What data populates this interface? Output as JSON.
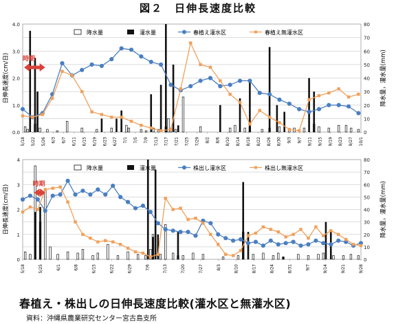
{
  "figure_title": "図２　日伸長速度比較",
  "caption": "春植え・株出しの日伸長速度比較(灌水区と無灌水区)",
  "source": "資料：沖縄県農業研究センター宮古島支所",
  "colors": {
    "irrigated": "#4a7fc1",
    "non_irrigated": "#f0a05a",
    "arrow": "#d9433a",
    "bar": "#111111",
    "grid": "#d0d0d0"
  },
  "chart_data": [
    {
      "type": "line",
      "panel": "top",
      "ylabel_left": "日伸長速度(cm/日)",
      "ylabel_right": "降水量，灌水量(mm)",
      "ylim_left": [
        0,
        4
      ],
      "ylim_right": [
        0,
        80
      ],
      "yticks_left": [
        "0.0",
        "1.0",
        "2.0",
        "3.0",
        "4.0"
      ],
      "yticks_right": [
        "0",
        "10",
        "20",
        "30",
        "40",
        "50",
        "60",
        "70",
        "80"
      ],
      "grid": true,
      "legend": [
        "降水量",
        "灌水量",
        "春植え灌水区",
        "春植え無灌水区"
      ],
      "x_ticks": [
        "5/18",
        "5/22",
        "5/26",
        "6/3",
        "6/7",
        "6/11",
        "6/15",
        "6/19",
        "6/23",
        "6/27",
        "7/1",
        "7/5",
        "7/9",
        "7/13",
        "7/17",
        "7/21",
        "7/25",
        "7/29",
        "8/2",
        "8/6",
        "8/10",
        "8/14",
        "8/18",
        "8/22",
        "8/26",
        "8/30",
        "9/3",
        "9/7",
        "9/11",
        "9/15",
        "9/19",
        "9/23",
        "9/27",
        "10/1"
      ],
      "x_day_range": [
        0,
        137
      ],
      "annotation": "時期",
      "annotation_range_days": [
        0,
        8
      ],
      "series": [
        {
          "name": "春植え灌水区",
          "x": [
            0,
            4,
            8,
            12,
            16,
            20,
            24,
            28,
            32,
            36,
            40,
            44,
            48,
            52,
            56,
            60,
            64,
            68,
            72,
            76,
            80,
            84,
            88,
            92,
            96,
            100,
            104,
            108,
            112,
            116,
            120,
            124,
            128,
            132,
            136
          ],
          "y": [
            0.85,
            0.55,
            0.7,
            1.4,
            2.55,
            2.1,
            2.3,
            2.5,
            2.45,
            2.7,
            3.1,
            3.05,
            2.8,
            2.6,
            2.5,
            1.75,
            1.55,
            1.7,
            1.9,
            2.0,
            1.7,
            1.75,
            1.9,
            1.9,
            1.45,
            1.4,
            1.2,
            1.05,
            0.85,
            0.75,
            0.85,
            1.0,
            1.0,
            0.95,
            0.7
          ]
        },
        {
          "name": "春植え無灌水区",
          "x": [
            0,
            4,
            8,
            12,
            16,
            20,
            24,
            28,
            32,
            36,
            40,
            44,
            48,
            52,
            56,
            60,
            64,
            68,
            72,
            76,
            80,
            84,
            88,
            92,
            96,
            100,
            104,
            108,
            112,
            116,
            120,
            124,
            128,
            132,
            136
          ],
          "y": [
            0.6,
            0.55,
            0.65,
            1.25,
            2.25,
            2.1,
            1.5,
            0.75,
            0.65,
            0.55,
            0.55,
            0.4,
            0.25,
            0.15,
            0.05,
            0.1,
            1.6,
            3.3,
            2.5,
            2.4,
            1.9,
            1.4,
            1.1,
            0.3,
            0.8,
            0.55,
            0.35,
            0.1,
            0.05,
            1.2,
            1.35,
            1.45,
            1.6,
            1.3,
            1.4
          ]
        }
      ],
      "bars_rain": {
        "name": "降水量",
        "x": [
          1,
          2,
          5,
          7,
          10,
          14,
          18,
          24,
          30,
          36,
          42,
          43,
          48,
          50,
          53,
          55,
          58,
          59,
          60,
          62,
          65,
          72,
          84,
          86,
          90,
          92,
          97,
          100,
          104,
          108,
          110,
          114,
          118,
          120,
          124,
          128,
          131,
          133,
          136
        ],
        "y": [
          4,
          2,
          6,
          3,
          2,
          1,
          8,
          3,
          2,
          3,
          5,
          3,
          2,
          1,
          3,
          2,
          4,
          10,
          3,
          2,
          26,
          4,
          3,
          5,
          3,
          4,
          2,
          3,
          4,
          2,
          3,
          3,
          6,
          4,
          3,
          5,
          5,
          3,
          2
        ]
      },
      "bars_irr": {
        "name": "灌水量",
        "x": [
          3,
          5,
          6,
          32,
          38,
          40,
          52,
          56,
          58,
          61,
          63,
          80,
          88,
          92,
          100,
          103,
          106,
          116,
          118
        ],
        "y": [
          75,
          55,
          30,
          10,
          10,
          16,
          28,
          35,
          80,
          50,
          5,
          20,
          25,
          38,
          63,
          20,
          15,
          40,
          30
        ]
      }
    },
    {
      "type": "line",
      "panel": "bottom",
      "ylabel_left": "日伸長速度(cm/日)",
      "ylabel_right": "降水量，灌水量(mm)",
      "ylim_left": [
        0,
        4
      ],
      "ylim_right": [
        0,
        80
      ],
      "yticks_left": [
        "0",
        "1",
        "2",
        "3",
        "4"
      ],
      "yticks_right": [
        "0",
        "10",
        "20",
        "30",
        "40",
        "50",
        "60",
        "70",
        "80"
      ],
      "grid": true,
      "legend": [
        "降水量",
        "灌水量",
        "株出し灌水区",
        "株出し無灌水区"
      ],
      "x_ticks": [
        "5/18",
        "5/25",
        "6/1",
        "6/8",
        "6/15",
        "6/22",
        "6/29",
        "7/6",
        "7/13",
        "7/20",
        "7/27",
        "8/3",
        "8/10",
        "8/17",
        "8/24",
        "8/31",
        "9/7",
        "9/14",
        "9/21",
        "9/28"
      ],
      "x_day_range": [
        0,
        135
      ],
      "annotation": "時期",
      "annotation_range_days": [
        4,
        8
      ],
      "series": [
        {
          "name": "株出し灌水区",
          "x": [
            0,
            3,
            6,
            9,
            12,
            15,
            18,
            21,
            24,
            27,
            30,
            33,
            36,
            39,
            42,
            45,
            48,
            51,
            54,
            57,
            60,
            63,
            66,
            69,
            72,
            75,
            78,
            81,
            84,
            87,
            90,
            93,
            96,
            99,
            102,
            105,
            108,
            111,
            114,
            117,
            120,
            123,
            126,
            129,
            132,
            135
          ],
          "y": [
            2.4,
            2.55,
            2.4,
            1.95,
            2.55,
            2.6,
            3.15,
            2.6,
            2.75,
            2.6,
            2.8,
            2.6,
            2.95,
            2.5,
            2.3,
            2.05,
            2.15,
            1.9,
            1.45,
            1.2,
            1.15,
            1.1,
            1.1,
            0.95,
            1.55,
            1.45,
            1.0,
            0.85,
            0.75,
            0.8,
            0.65,
            0.7,
            0.55,
            0.75,
            0.6,
            0.65,
            0.7,
            0.55,
            0.6,
            0.75,
            0.65,
            0.6,
            0.75,
            0.7,
            0.55,
            0.65
          ]
        },
        {
          "name": "株出し無灌水区",
          "x": [
            0,
            3,
            6,
            9,
            12,
            15,
            18,
            21,
            24,
            27,
            30,
            33,
            36,
            39,
            42,
            45,
            48,
            51,
            54,
            57,
            60,
            63,
            66,
            69,
            72,
            75,
            78,
            81,
            84,
            87,
            90,
            93,
            96,
            99,
            102,
            105,
            108,
            111,
            114,
            117,
            120,
            123,
            126,
            129,
            132,
            135
          ],
          "y": [
            1.9,
            2.1,
            2.0,
            2.8,
            2.85,
            2.9,
            2.3,
            1.5,
            1.0,
            0.85,
            0.7,
            0.75,
            0.7,
            0.6,
            0.45,
            0.3,
            0.25,
            0.1,
            0.2,
            2.45,
            2.0,
            2.05,
            1.6,
            1.65,
            1.45,
            1.0,
            0.6,
            0.2,
            0.15,
            0.35,
            0.95,
            1.05,
            1.3,
            1.2,
            1.1,
            0.9,
            1.0,
            1.2,
            0.85,
            1.3,
            0.95,
            1.15,
            1.0,
            0.8,
            0.6,
            0.55
          ]
        }
      ],
      "bars_rain": {
        "name": "降水量",
        "x": [
          1,
          3,
          5,
          7,
          9,
          11,
          14,
          18,
          22,
          24,
          28,
          30,
          34,
          38,
          42,
          46,
          49,
          51,
          52,
          55,
          57,
          60,
          62,
          64,
          68,
          72,
          80,
          86,
          88,
          92,
          96,
          100,
          102,
          104,
          110,
          114,
          118,
          120,
          124,
          128,
          131,
          134
        ],
        "y": [
          6,
          4,
          75,
          30,
          55,
          10,
          4,
          6,
          5,
          8,
          3,
          5,
          12,
          3,
          6,
          4,
          3,
          8,
          20,
          4,
          28,
          5,
          3,
          3,
          5,
          4,
          2,
          3,
          22,
          4,
          5,
          3,
          5,
          2,
          4,
          3,
          4,
          5,
          3,
          3,
          4,
          3
        ]
      },
      "bars_irr": {
        "name": "灌水量",
        "x": [
          5,
          7,
          50,
          52,
          53,
          54,
          62,
          88,
          90,
          104,
          121,
          123
        ],
        "y": [
          38,
          42,
          80,
          18,
          72,
          20,
          22,
          62,
          22,
          2,
          30,
          24
        ]
      }
    }
  ]
}
